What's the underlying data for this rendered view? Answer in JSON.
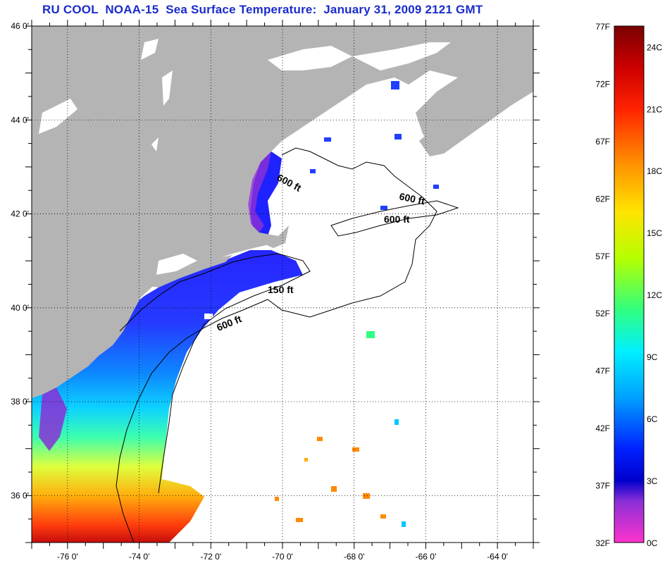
{
  "title": "RU COOL  NOAA-15  Sea Surface Temperature:  January 31, 2009 2121 GMT",
  "map": {
    "lon_range": [
      -77,
      -63
    ],
    "lat_range": [
      35,
      46
    ],
    "lon_ticks": [
      {
        "value": -76,
        "label": "-76 0'"
      },
      {
        "value": -74,
        "label": "-74 0'"
      },
      {
        "value": -72,
        "label": "-72 0'"
      },
      {
        "value": -70,
        "label": "-70 0'"
      },
      {
        "value": -68,
        "label": "-68 0'"
      },
      {
        "value": -66,
        "label": "-66 0'"
      },
      {
        "value": -64,
        "label": "-64 0'"
      }
    ],
    "lat_ticks": [
      {
        "value": 46,
        "label": "46 0'"
      },
      {
        "value": 44,
        "label": "44 0'"
      },
      {
        "value": 42,
        "label": "42 0'"
      },
      {
        "value": 40,
        "label": "40 0'"
      },
      {
        "value": 38,
        "label": "38 0'"
      },
      {
        "value": 36,
        "label": "36 0'"
      }
    ],
    "contour_labels": [
      {
        "text": "600 ft",
        "rotate": 28
      },
      {
        "text": "600 ft",
        "rotate": 12
      },
      {
        "text": "600 ft",
        "rotate": 0
      },
      {
        "text": "150 ft",
        "rotate": 0
      },
      {
        "text": "600 ft",
        "rotate": -22
      }
    ],
    "colors": {
      "land": "#b4b4b4",
      "lakes": "#ffffff",
      "coastline": "#000000",
      "cloud": "#ffffff"
    }
  },
  "colorbar": {
    "fahrenheit_labels": [
      "77F",
      "72F",
      "67F",
      "62F",
      "57F",
      "52F",
      "47F",
      "42F",
      "37F",
      "32F"
    ],
    "celsius_labels": [
      "24C",
      "21C",
      "18C",
      "15C",
      "12C",
      "9C",
      "6C",
      "3C",
      "0C"
    ],
    "gradient_stops": [
      {
        "offset": 0.0,
        "color": "#7a0000"
      },
      {
        "offset": 0.08,
        "color": "#cc0000"
      },
      {
        "offset": 0.16,
        "color": "#ff2200"
      },
      {
        "offset": 0.26,
        "color": "#ff8a00"
      },
      {
        "offset": 0.36,
        "color": "#ffe500"
      },
      {
        "offset": 0.45,
        "color": "#b5ff00"
      },
      {
        "offset": 0.55,
        "color": "#30ff80"
      },
      {
        "offset": 0.63,
        "color": "#00f0ff"
      },
      {
        "offset": 0.72,
        "color": "#00a0ff"
      },
      {
        "offset": 0.82,
        "color": "#0020ff"
      },
      {
        "offset": 0.88,
        "color": "#0000cc"
      },
      {
        "offset": 0.92,
        "color": "#8b2fd8"
      },
      {
        "offset": 1.0,
        "color": "#ff33cc"
      }
    ]
  }
}
